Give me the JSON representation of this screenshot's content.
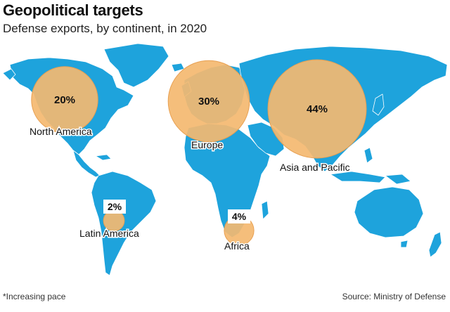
{
  "title": "Geopolitical targets",
  "subtitle": "Defense exports, by continent, in 2020",
  "footnote": "*Increasing pace",
  "source": "Source: Ministry of Defense",
  "colors": {
    "land": "#1ea3dc",
    "bubble": "#f4b870",
    "bubble_stroke": "#e8a052",
    "label_box": "#ffffff"
  },
  "chart_data": {
    "type": "bubble-map",
    "title": "Geopolitical targets",
    "subtitle": "Defense exports, by continent, in 2020",
    "unit": "%",
    "series": [
      {
        "region": "North America",
        "value": 20,
        "label": "20%"
      },
      {
        "region": "Europe",
        "value": 30,
        "label": "30%"
      },
      {
        "region": "Asia and Pacific",
        "value": 44,
        "label": "44%"
      },
      {
        "region": "Latin America",
        "value": 2,
        "label": "2%"
      },
      {
        "region": "Africa",
        "value": 4,
        "label": "4%"
      }
    ]
  }
}
